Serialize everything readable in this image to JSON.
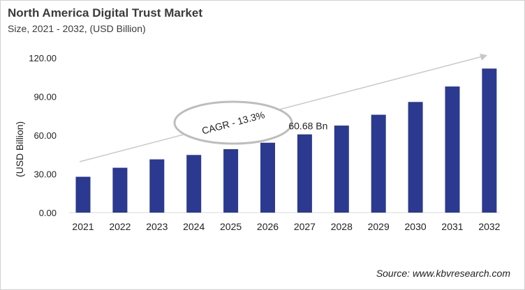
{
  "chart_data": {
    "type": "bar",
    "title": "North America Digital Trust Market",
    "subtitle": "Size, 2021 - 2032, (USD Billion)",
    "xlabel": "",
    "ylabel": "(USD Billion)",
    "ylim": [
      0,
      120
    ],
    "yticks": [
      "0.00",
      "30.00",
      "60.00",
      "90.00",
      "120.00"
    ],
    "grid": false,
    "categories": [
      "2021",
      "2022",
      "2023",
      "2024",
      "2025",
      "2026",
      "2027",
      "2028",
      "2029",
      "2030",
      "2031",
      "2032"
    ],
    "values": [
      27.8,
      34.8,
      41.3,
      44.7,
      49.2,
      54.2,
      60.68,
      67.5,
      75.9,
      85.8,
      97.8,
      111.7
    ],
    "bar_color": "#2b3990",
    "annotations": {
      "data_label": {
        "category": "2027",
        "text": "60.68 Bn"
      },
      "cagr": "CAGR - 13.3%"
    },
    "source": "Source: www.kbvresearch.com"
  }
}
